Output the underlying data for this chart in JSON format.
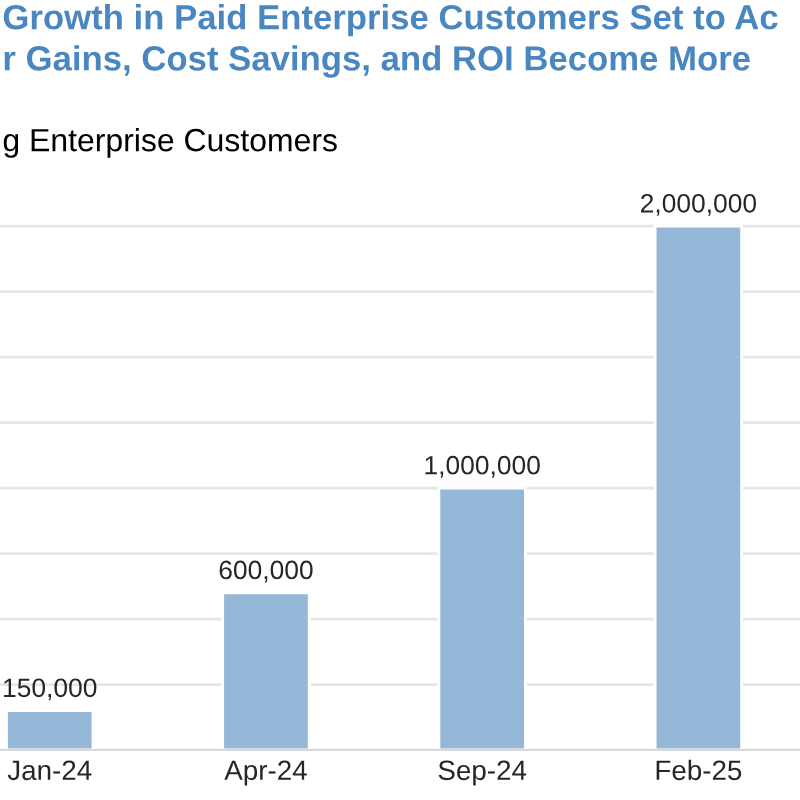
{
  "chart_data": {
    "type": "bar",
    "title": "Growth in Paid Enterprise Customers Set to Ac\nr Gains, Cost Savings, and ROI Become More",
    "subtitle": "g Enterprise Customers",
    "categories": [
      "Jan-24",
      "Apr-24",
      "Sep-24",
      "Feb-25"
    ],
    "values": [
      150000,
      600000,
      1000000,
      2000000
    ],
    "color": "#95b8d9",
    "value_labels": [
      "150,000",
      "600,000",
      "1,000,000",
      "2,000,000"
    ],
    "grid": "y",
    "tick_labels": "x"
  }
}
